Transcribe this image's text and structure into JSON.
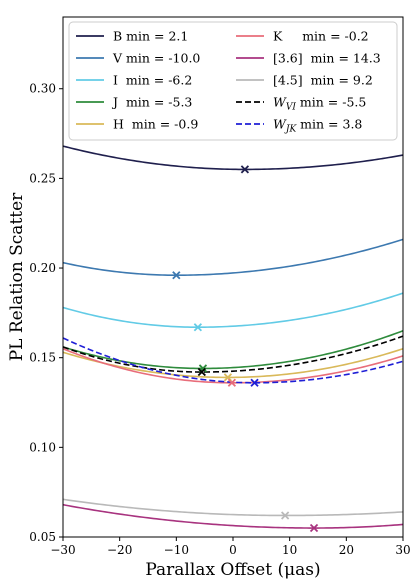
{
  "chart_data": {
    "type": "line",
    "xlabel": "Parallax Offset (μas)",
    "ylabel": "PL Relation Scatter",
    "xlim": [
      -30,
      30
    ],
    "ylim": [
      0.05,
      0.34
    ],
    "xticks": [
      -30,
      -20,
      -10,
      0,
      10,
      20,
      30
    ],
    "xtick_labels": [
      "−30",
      "−20",
      "−10",
      "0",
      "10",
      "20",
      "30"
    ],
    "yticks": [
      0.05,
      0.1,
      0.15,
      0.2,
      0.25,
      0.3
    ],
    "ytick_labels": [
      "0.05",
      "0.10",
      "0.15",
      "0.20",
      "0.25",
      "0.30"
    ],
    "grid": false,
    "legend_position": "top",
    "series": [
      {
        "name": "B min = 2.1",
        "color": "#1f1f4d",
        "dash": "solid",
        "min_x": 2.1,
        "min_y": 0.255,
        "y_at_xmin": 0.268,
        "y_at_xmax": 0.263
      },
      {
        "name": "V min = -10.0",
        "color": "#3d79b0",
        "dash": "solid",
        "min_x": -10.0,
        "min_y": 0.196,
        "y_at_xmin": 0.203,
        "y_at_xmax": 0.216
      },
      {
        "name": "I  min = -6.2",
        "color": "#62cbe6",
        "dash": "solid",
        "min_x": -6.2,
        "min_y": 0.167,
        "y_at_xmin": 0.178,
        "y_at_xmax": 0.186
      },
      {
        "name": "J  min = -5.3",
        "color": "#2e8b3c",
        "dash": "solid",
        "min_x": -5.3,
        "min_y": 0.144,
        "y_at_xmin": 0.156,
        "y_at_xmax": 0.165
      },
      {
        "name": "H  min = -0.9",
        "color": "#d9b95a",
        "dash": "solid",
        "min_x": -0.9,
        "min_y": 0.139,
        "y_at_xmin": 0.153,
        "y_at_xmax": 0.155
      },
      {
        "name": "K     min = -0.2",
        "color": "#e86d7a",
        "dash": "solid",
        "min_x": -0.2,
        "min_y": 0.136,
        "y_at_xmin": 0.155,
        "y_at_xmax": 0.151
      },
      {
        "name": "[3.6]  min = 14.3",
        "color": "#a8337f",
        "dash": "solid",
        "min_x": 14.3,
        "min_y": 0.055,
        "y_at_xmin": 0.068,
        "y_at_xmax": 0.057
      },
      {
        "name": "[4.5]  min = 9.2",
        "color": "#b9b9b9",
        "dash": "solid",
        "min_x": 9.2,
        "min_y": 0.062,
        "y_at_xmin": 0.071,
        "y_at_xmax": 0.064
      },
      {
        "name": "W_VI min = -5.5",
        "label_main": "W",
        "label_sub": "VI",
        "label_rest": " min = -5.5",
        "color": "#000000",
        "dash": "dashed",
        "min_x": -5.5,
        "min_y": 0.142,
        "y_at_xmin": 0.156,
        "y_at_xmax": 0.162
      },
      {
        "name": "W_JK min = 3.8",
        "label_main": "W",
        "label_sub": "JK",
        "label_rest": " min = 3.8",
        "color": "#1f1fd6",
        "dash": "dashed",
        "min_x": 3.8,
        "min_y": 0.136,
        "y_at_xmin": 0.161,
        "y_at_xmax": 0.148
      }
    ]
  }
}
